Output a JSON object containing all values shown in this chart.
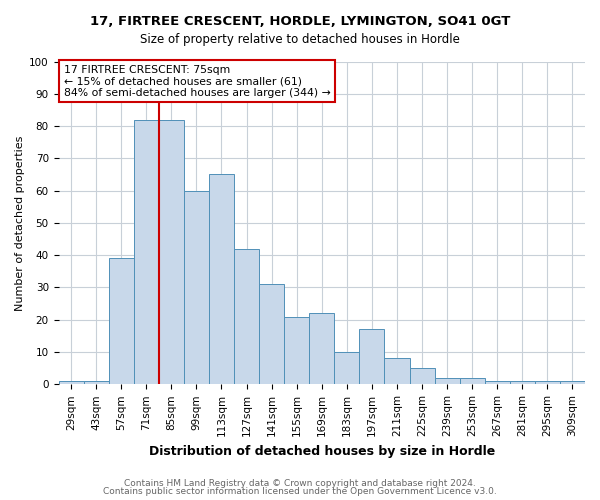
{
  "title1": "17, FIRTREE CRESCENT, HORDLE, LYMINGTON, SO41 0GT",
  "title2": "Size of property relative to detached houses in Hordle",
  "xlabel": "Distribution of detached houses by size in Hordle",
  "ylabel": "Number of detached properties",
  "categories": [
    "29sqm",
    "43sqm",
    "57sqm",
    "71sqm",
    "85sqm",
    "99sqm",
    "113sqm",
    "127sqm",
    "141sqm",
    "155sqm",
    "169sqm",
    "183sqm",
    "197sqm",
    "211sqm",
    "225sqm",
    "239sqm",
    "253sqm",
    "267sqm",
    "281sqm",
    "295sqm",
    "309sqm"
  ],
  "values": [
    1,
    1,
    39,
    82,
    82,
    60,
    65,
    42,
    31,
    21,
    22,
    10,
    17,
    8,
    5,
    2,
    2,
    1,
    1,
    1,
    1
  ],
  "bar_color": "#c8d8ea",
  "bar_edge_color": "#5090b8",
  "property_label": "17 FIRTREE CRESCENT: 75sqm",
  "annotation_line1": "← 15% of detached houses are smaller (61)",
  "annotation_line2": "84% of semi-detached houses are larger (344) →",
  "vline_color": "#cc0000",
  "annotation_box_color": "#ffffff",
  "annotation_box_edge_color": "#cc0000",
  "footer1": "Contains HM Land Registry data © Crown copyright and database right 2024.",
  "footer2": "Contains public sector information licensed under the Open Government Licence v3.0.",
  "ylim": [
    0,
    100
  ],
  "yticks": [
    0,
    10,
    20,
    30,
    40,
    50,
    60,
    70,
    80,
    90,
    100
  ],
  "bg_color": "#ffffff",
  "grid_color": "#c8d0d8",
  "title1_fontsize": 9.5,
  "title2_fontsize": 8.5,
  "xlabel_fontsize": 9,
  "ylabel_fontsize": 8,
  "tick_fontsize": 7.5,
  "footer_fontsize": 6.5,
  "footer_color": "#666666"
}
